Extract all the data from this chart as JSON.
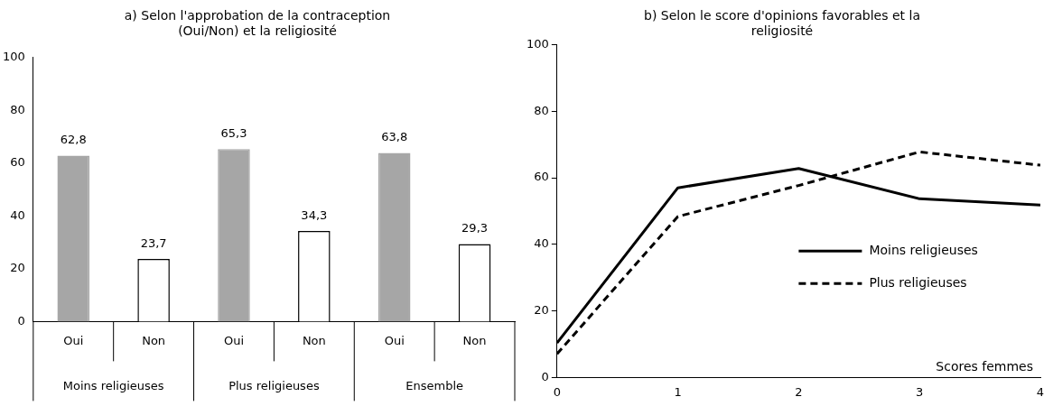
{
  "chart_data": [
    {
      "type": "bar",
      "title": "a) Selon l'approbation de la contraception (Oui/Non) et la religiosité",
      "categories": [
        "Oui",
        "Non",
        "Oui",
        "Non",
        "Oui",
        "Non"
      ],
      "values": [
        62.8,
        23.7,
        65.3,
        34.3,
        63.8,
        29.3
      ],
      "colors": [
        "#a6a6a6",
        "#ffffff",
        "#a6a6a6",
        "#ffffff",
        "#a6a6a6",
        "#ffffff"
      ],
      "ylim": [
        0,
        100
      ],
      "yticks": [
        0,
        20,
        40,
        60,
        80,
        100
      ],
      "grid": false,
      "value_labels": [
        "62,8",
        "23,7",
        "65,3",
        "34,3",
        "63,8",
        "29,3"
      ],
      "annotations": [
        "Moins religieuses",
        "Plus religieuses",
        "Ensemble"
      ]
    },
    {
      "type": "line",
      "title": "b) Selon le score d'opinions favorables et la religiosité",
      "xlabel": "Scores femmes",
      "x": [
        0,
        1,
        2,
        3,
        4
      ],
      "xlim": [
        0,
        4
      ],
      "xticks": [
        0,
        1,
        2,
        3,
        4
      ],
      "ylim": [
        0,
        100
      ],
      "yticks": [
        0,
        20,
        40,
        60,
        80,
        100
      ],
      "grid": false,
      "legend": "right",
      "marker": "none",
      "series": [
        {
          "name": "Moins religieuses",
          "color": "#000000",
          "line_style": "solid",
          "values": [
            10.4,
            57,
            62.8,
            53.7,
            51.8
          ]
        },
        {
          "name": "Plus religieuses",
          "color": "#000000",
          "line_style": "dashed",
          "values": [
            7.1,
            48.4,
            57.7,
            67.8,
            63.8
          ]
        }
      ]
    }
  ]
}
